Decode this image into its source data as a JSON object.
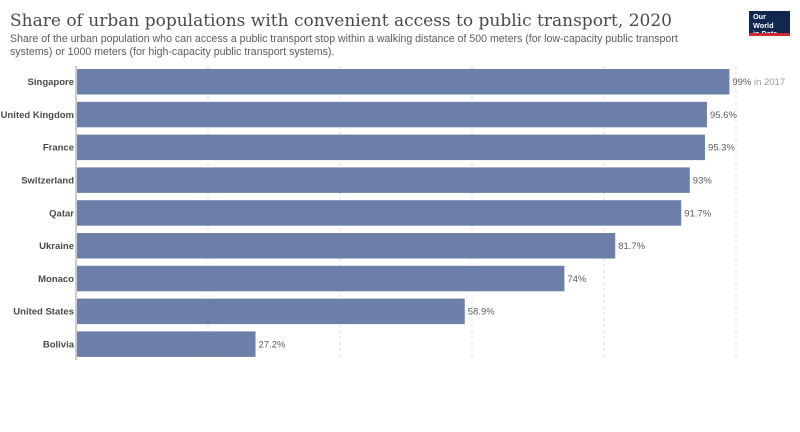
{
  "header": {
    "title": "Share of urban populations with convenient access to public transport, 2020",
    "subtitle": "Share of the urban population who can access a public transport stop within a walking distance of 500 meters (for low-capacity public transport systems) or 1000 meters (for high-capacity public transport systems).",
    "logo_line1": "Our World",
    "logo_line2": "in Data"
  },
  "colors": {
    "bar": "#6b7fa8",
    "logo_bg": "#10284d",
    "logo_stripe": "#cc2c38"
  },
  "chart_data": {
    "type": "bar",
    "orientation": "horizontal",
    "title": "Share of urban populations with convenient access to public transport, 2020",
    "categories": [
      "Singapore",
      "United Kingdom",
      "France",
      "Switzerland",
      "Qatar",
      "Ukraine",
      "Monaco",
      "United States",
      "Bolivia"
    ],
    "values": [
      99,
      95.6,
      95.3,
      93,
      91.7,
      81.7,
      74,
      58.9,
      27.2
    ],
    "value_labels": [
      "99%",
      "95.6%",
      "95.3%",
      "93%",
      "91.7%",
      "81.7%",
      "74%",
      "58.9%",
      "27.2%"
    ],
    "value_notes": [
      "in 2017",
      "",
      "",
      "",
      "",
      "",
      "",
      "",
      ""
    ],
    "xlim": [
      0,
      100
    ],
    "grid": true,
    "unit": "%"
  }
}
